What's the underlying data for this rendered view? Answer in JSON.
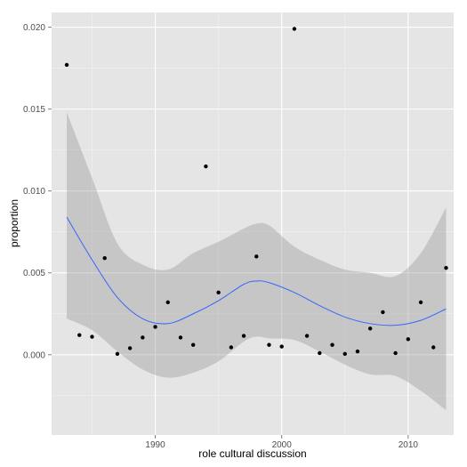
{
  "chart_data": {
    "type": "scatter",
    "xlabel": "role cultural discussion",
    "ylabel": "proportion",
    "xlim": [
      1981.8,
      2013.6
    ],
    "ylim": [
      -0.0049,
      0.0209
    ],
    "x_ticks": [
      1990,
      2000,
      2010
    ],
    "x_tick_labels": [
      "1990",
      "2000",
      "2010"
    ],
    "y_ticks": [
      0.0,
      0.005,
      0.01,
      0.015,
      0.02
    ],
    "y_tick_labels": [
      "0.000",
      "0.005",
      "0.010",
      "0.015",
      "0.020"
    ],
    "grid": true,
    "legend": "none",
    "points": [
      {
        "x": 1983,
        "y": 0.0177
      },
      {
        "x": 1984,
        "y": 0.0012
      },
      {
        "x": 1985,
        "y": 0.0011
      },
      {
        "x": 1986,
        "y": 0.0059
      },
      {
        "x": 1987,
        "y": 5e-05
      },
      {
        "x": 1988,
        "y": 0.0004
      },
      {
        "x": 1989,
        "y": 0.00105
      },
      {
        "x": 1990,
        "y": 0.0017
      },
      {
        "x": 1991,
        "y": 0.0032
      },
      {
        "x": 1992,
        "y": 0.00105
      },
      {
        "x": 1993,
        "y": 0.0006
      },
      {
        "x": 1994,
        "y": 0.0115
      },
      {
        "x": 1995,
        "y": 0.0038
      },
      {
        "x": 1996,
        "y": 0.00045
      },
      {
        "x": 1997,
        "y": 0.00115
      },
      {
        "x": 1998,
        "y": 0.006
      },
      {
        "x": 1999,
        "y": 0.0006
      },
      {
        "x": 2000,
        "y": 0.0005
      },
      {
        "x": 2001,
        "y": 0.0199
      },
      {
        "x": 2002,
        "y": 0.00115
      },
      {
        "x": 2003,
        "y": 0.0001
      },
      {
        "x": 2004,
        "y": 0.0006
      },
      {
        "x": 2005,
        "y": 5e-05
      },
      {
        "x": 2006,
        "y": 0.0002
      },
      {
        "x": 2007,
        "y": 0.0016
      },
      {
        "x": 2008,
        "y": 0.0026
      },
      {
        "x": 2009,
        "y": 0.0001
      },
      {
        "x": 2010,
        "y": 0.00095
      },
      {
        "x": 2011,
        "y": 0.0032
      },
      {
        "x": 2012,
        "y": 0.00045
      },
      {
        "x": 2013,
        "y": 0.0053
      }
    ],
    "smooth": {
      "x": [
        1983,
        1985,
        1987,
        1989,
        1991,
        1993,
        1995,
        1997,
        1998,
        1999,
        2001,
        2003,
        2005,
        2007,
        2009,
        2011,
        2013
      ],
      "y": [
        0.0084,
        0.0058,
        0.0035,
        0.0022,
        0.0019,
        0.0025,
        0.0033,
        0.0043,
        0.0045,
        0.0044,
        0.0038,
        0.003,
        0.0023,
        0.0019,
        0.0018,
        0.0021,
        0.0028
      ],
      "upper": [
        0.0148,
        0.0108,
        0.0068,
        0.0055,
        0.0052,
        0.0062,
        0.0069,
        0.0077,
        0.008,
        0.0079,
        0.0066,
        0.0058,
        0.0052,
        0.005,
        0.0048,
        0.0062,
        0.009
      ],
      "lower": [
        0.0022,
        0.0015,
        0.0002,
        -0.0009,
        -0.0014,
        -0.0011,
        -0.0004,
        0.0008,
        0.0011,
        0.001,
        0.0009,
        0.0002,
        -0.0006,
        -0.0012,
        -0.0013,
        -0.0022,
        -0.0034
      ]
    },
    "colors": {
      "panel": "#e5e5e5",
      "grid_major": "#ffffff",
      "grid_minor": "#f2f2f2",
      "point": "#000000",
      "line": "#3366ff",
      "ribbon": "#999999"
    }
  }
}
